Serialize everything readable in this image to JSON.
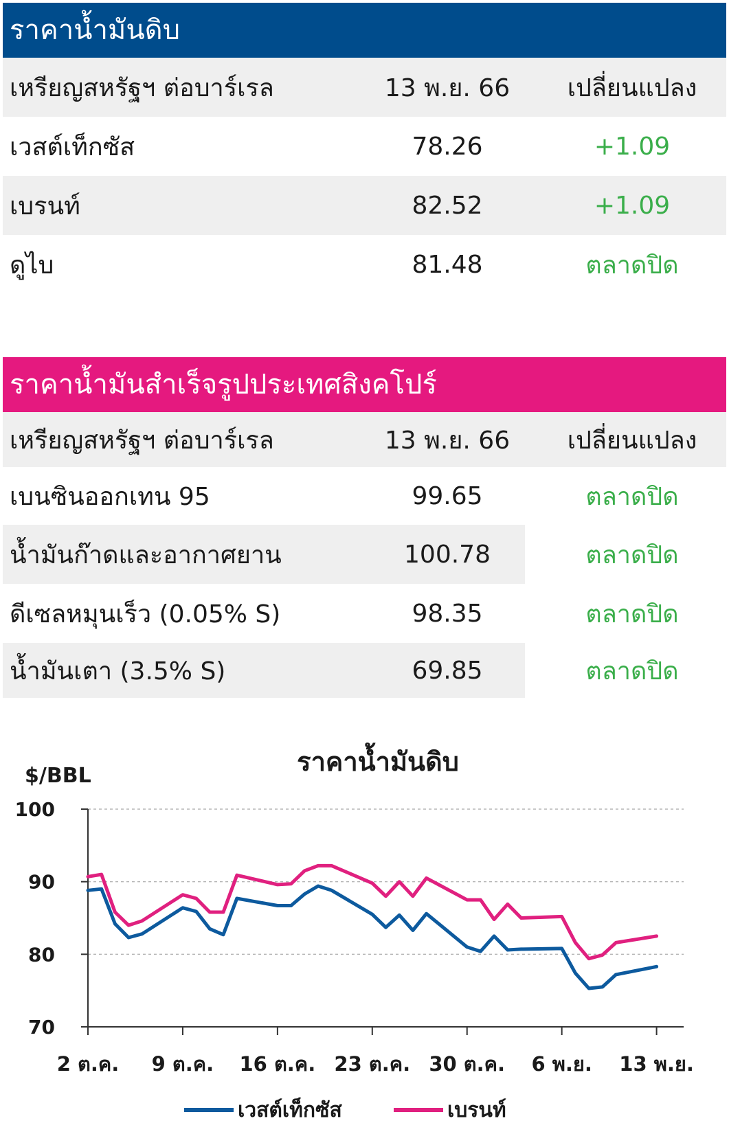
{
  "crude_section": {
    "title": "ราคาน้ำมันดิบ",
    "header": {
      "label": "เหรียญสหรัฐฯ ต่อบาร์เรล",
      "date": "13 พ.ย. 66",
      "change": "เปลี่ยนแปลง"
    },
    "rows": [
      {
        "name": "เวสต์เท็กซัส",
        "price": "78.26",
        "change": "+1.09"
      },
      {
        "name": "เบรนท์",
        "price": "82.52",
        "change": "+1.09"
      },
      {
        "name": "ดูไบ",
        "price": "81.48",
        "change": "ตลาดปิด"
      }
    ]
  },
  "refined_section": {
    "title": "ราคาน้ำมันสำเร็จรูปประเทศสิงคโปร์",
    "header": {
      "label": "เหรียญสหรัฐฯ ต่อบาร์เรล",
      "date": "13 พ.ย. 66",
      "change": "เปลี่ยนแปลง"
    },
    "rows": [
      {
        "name": "เบนซินออกเทน 95",
        "price": "99.65",
        "change": "ตลาดปิด"
      },
      {
        "name": "น้ำมันก๊าดและอากาศยาน",
        "price": "100.78",
        "change": "ตลาดปิด"
      },
      {
        "name": "ดีเซลหมุนเร็ว (0.05% S)",
        "price": "98.35",
        "change": "ตลาดปิด"
      },
      {
        "name": "น้ำมันเตา (3.5% S)",
        "price": "69.85",
        "change": "ตลาดปิด"
      }
    ]
  },
  "colors": {
    "blue": "#004c8c",
    "pink": "#e5197f",
    "green": "#3aae4a",
    "wti_line": "#0d5a9e",
    "brent_line": "#e0207f"
  },
  "chart_data": {
    "type": "line",
    "title": "ราคาน้ำมันดิบ",
    "ylabel": "$/BBL",
    "ylim": [
      70,
      100
    ],
    "yticks": [
      "100",
      "90",
      "80",
      "70"
    ],
    "x_tick_labels": [
      "2 ต.ค.",
      "9 ต.ค.",
      "16 ต.ค.",
      "23 ต.ค.",
      "30 ต.ค.",
      "6 พ.ย.",
      "13 พ.ย."
    ],
    "x_days": [
      2,
      3,
      4,
      5,
      6,
      9,
      10,
      11,
      12,
      13,
      16,
      17,
      18,
      19,
      20,
      23,
      24,
      25,
      26,
      27,
      30,
      31,
      32,
      33,
      34,
      37,
      38,
      39,
      40,
      41,
      44
    ],
    "grid": "horizontal-dashed",
    "legend_placement": "bottom",
    "series": [
      {
        "name": "เวสต์เท็กซัส",
        "values": [
          88.8,
          89.0,
          84.2,
          82.3,
          82.8,
          86.4,
          85.9,
          83.5,
          82.7,
          87.7,
          86.7,
          86.7,
          88.3,
          89.4,
          88.8,
          85.5,
          83.7,
          85.4,
          83.3,
          85.6,
          81.0,
          80.4,
          82.5,
          80.6,
          80.7,
          80.8,
          77.4,
          75.3,
          75.5,
          77.2,
          78.3
        ]
      },
      {
        "name": "เบรนท์",
        "values": [
          90.7,
          91.0,
          85.8,
          84.0,
          84.6,
          88.2,
          87.7,
          85.8,
          85.8,
          90.9,
          89.6,
          89.7,
          91.5,
          92.2,
          92.2,
          89.8,
          88.0,
          90.0,
          88.0,
          90.5,
          87.5,
          87.5,
          84.8,
          86.9,
          85.0,
          85.2,
          81.6,
          79.4,
          79.9,
          81.6,
          82.5
        ]
      }
    ]
  }
}
